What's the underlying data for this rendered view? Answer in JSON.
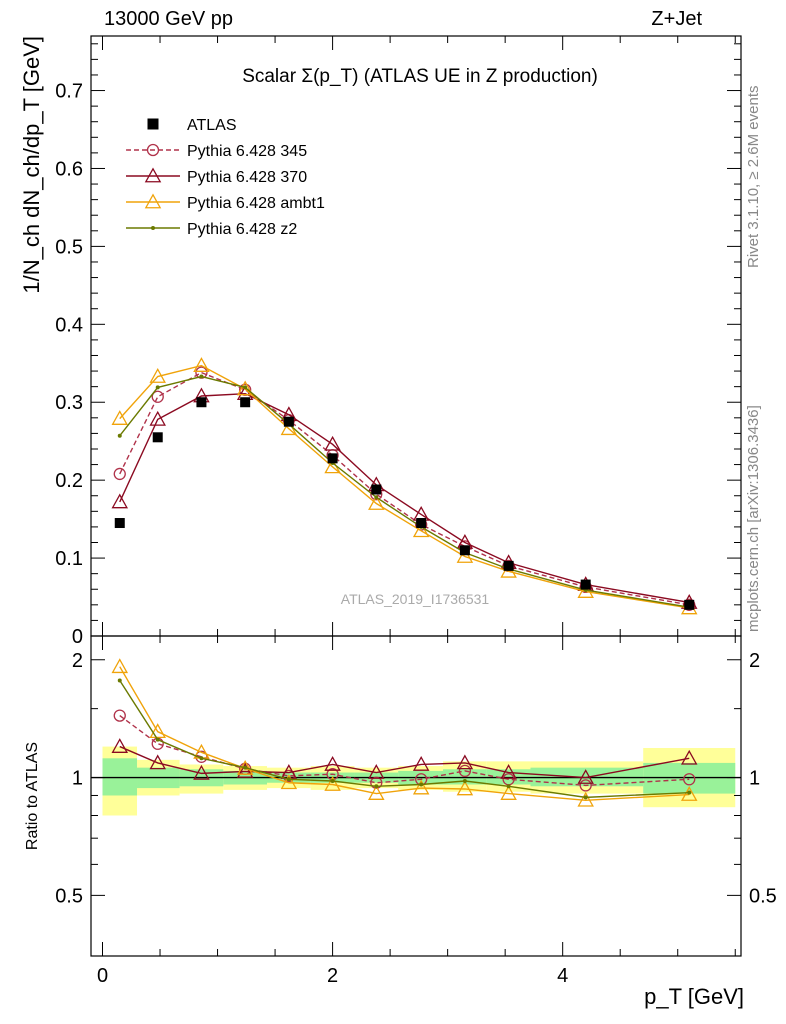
{
  "header": {
    "left": "13000 GeV pp",
    "right": "Z+Jet"
  },
  "side": {
    "rivet": "Rivet 3.1.10, ≥ 2.6M events",
    "mcplots": "mcplots.cern.ch [arXiv:1306.3436]"
  },
  "chart_data": {
    "type": "line",
    "title": "Scalar Σ(p_T) (ATLAS UE in Z production)",
    "watermark": "ATLAS_2019_I1736531",
    "xlabel": "p_T [GeV]",
    "ylabel": "1/N_ch dN_ch/dp_T [GeV]",
    "ratio_ylabel": "Ratio to ATLAS",
    "xlim": [
      -0.1,
      5.55
    ],
    "ylim": [
      0,
      0.77
    ],
    "ratio_ylim": [
      0.35,
      2.3
    ],
    "x_ticks": [
      "0",
      "2",
      "4"
    ],
    "y_ticks": [
      "0",
      "0.1",
      "0.2",
      "0.3",
      "0.4",
      "0.5",
      "0.6",
      "0.7"
    ],
    "ratio_ticks": [
      "0.5",
      "1",
      "2"
    ],
    "x": [
      0.15,
      0.48,
      0.86,
      1.24,
      1.62,
      2.0,
      2.38,
      2.77,
      3.15,
      3.53,
      4.2,
      5.1
    ],
    "data": {
      "name": "ATLAS",
      "values": [
        0.145,
        0.255,
        0.3,
        0.3,
        0.275,
        0.228,
        0.188,
        0.145,
        0.11,
        0.09,
        0.066,
        0.04
      ]
    },
    "series": [
      {
        "name": "Pythia 6.428 345",
        "color": "#b0324a",
        "dashed": true,
        "marker": "circle",
        "values": [
          0.208,
          0.307,
          0.338,
          0.316,
          0.277,
          0.232,
          0.182,
          0.143,
          0.115,
          0.09,
          0.063,
          0.04
        ],
        "ratio": [
          1.44,
          1.22,
          1.13,
          1.053,
          1.01,
          1.02,
          0.97,
          0.99,
          1.04,
          0.99,
          0.955,
          0.99
        ]
      },
      {
        "name": "Pythia 6.428 370",
        "color": "#8b0a21",
        "dashed": false,
        "marker": "triangle",
        "values": [
          0.172,
          0.278,
          0.308,
          0.311,
          0.284,
          0.246,
          0.194,
          0.156,
          0.12,
          0.094,
          0.066,
          0.043
        ],
        "ratio": [
          1.2,
          1.09,
          1.025,
          1.037,
          1.03,
          1.08,
          1.03,
          1.08,
          1.09,
          1.03,
          1.0,
          1.12
        ]
      },
      {
        "name": "Pythia 6.428 ambt1",
        "color": "#f0a30a",
        "dashed": false,
        "marker": "triangle",
        "values": [
          0.279,
          0.333,
          0.347,
          0.317,
          0.266,
          0.217,
          0.17,
          0.135,
          0.102,
          0.083,
          0.057,
          0.036
        ],
        "ratio": [
          1.92,
          1.31,
          1.16,
          1.055,
          0.97,
          0.96,
          0.91,
          0.94,
          0.935,
          0.91,
          0.875,
          0.905
        ]
      },
      {
        "name": "Pythia 6.428 z2",
        "color": "#6b7a00",
        "dashed": false,
        "marker": "dot",
        "values": [
          0.257,
          0.319,
          0.333,
          0.319,
          0.272,
          0.222,
          0.178,
          0.14,
          0.107,
          0.086,
          0.059,
          0.037
        ],
        "ratio": [
          1.77,
          1.25,
          1.12,
          1.06,
          0.99,
          0.98,
          0.95,
          0.96,
          0.98,
          0.95,
          0.89,
          0.915
        ]
      }
    ],
    "bands": [
      {
        "x0": 0.0,
        "x1": 0.3,
        "green": [
          0.9,
          1.12
        ],
        "yellow": [
          0.8,
          1.2
        ]
      },
      {
        "x0": 0.3,
        "x1": 0.67,
        "green": [
          0.94,
          1.06
        ],
        "yellow": [
          0.9,
          1.11
        ]
      },
      {
        "x0": 0.67,
        "x1": 1.05,
        "green": [
          0.95,
          1.05
        ],
        "yellow": [
          0.91,
          1.08
        ]
      },
      {
        "x0": 1.05,
        "x1": 1.43,
        "green": [
          0.96,
          1.04
        ],
        "yellow": [
          0.93,
          1.07
        ]
      },
      {
        "x0": 1.43,
        "x1": 1.81,
        "green": [
          0.97,
          1.03
        ],
        "yellow": [
          0.94,
          1.06
        ]
      },
      {
        "x0": 1.81,
        "x1": 2.19,
        "green": [
          0.97,
          1.03
        ],
        "yellow": [
          0.93,
          1.07
        ]
      },
      {
        "x0": 2.19,
        "x1": 2.57,
        "green": [
          0.97,
          1.03
        ],
        "yellow": [
          0.94,
          1.06
        ]
      },
      {
        "x0": 2.57,
        "x1": 2.96,
        "green": [
          0.96,
          1.04
        ],
        "yellow": [
          0.93,
          1.07
        ]
      },
      {
        "x0": 2.96,
        "x1": 3.34,
        "green": [
          0.96,
          1.05
        ],
        "yellow": [
          0.92,
          1.1
        ]
      },
      {
        "x0": 3.34,
        "x1": 3.72,
        "green": [
          0.96,
          1.05
        ],
        "yellow": [
          0.92,
          1.1
        ]
      },
      {
        "x0": 3.72,
        "x1": 4.7,
        "green": [
          0.95,
          1.06
        ],
        "yellow": [
          0.91,
          1.1
        ]
      },
      {
        "x0": 4.7,
        "x1": 5.5,
        "green": [
          0.91,
          1.09
        ],
        "yellow": [
          0.84,
          1.19
        ]
      }
    ]
  }
}
